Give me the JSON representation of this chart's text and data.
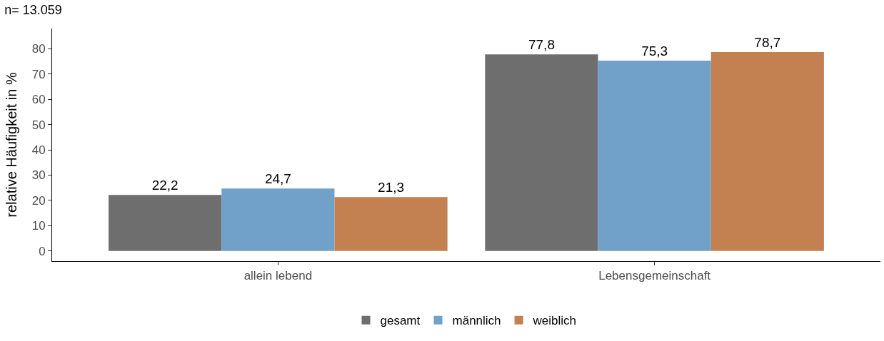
{
  "chart_data": {
    "type": "bar",
    "title": "n= 13.059",
    "ylabel": "relative Häufigkeit in %",
    "categories": [
      "allein lebend",
      "Lebensgemeinschaft"
    ],
    "series": [
      {
        "name": "gesamt",
        "color": "#6e6e6e",
        "values": [
          22.2,
          77.8
        ],
        "value_labels": [
          "22,2",
          "77,8"
        ]
      },
      {
        "name": "männlich",
        "color": "#71a0c8",
        "values": [
          24.7,
          75.3
        ],
        "value_labels": [
          "24,7",
          "75,3"
        ]
      },
      {
        "name": "weiblich",
        "color": "#c38050",
        "values": [
          21.3,
          78.7
        ],
        "value_labels": [
          "21,3",
          "78,7"
        ]
      }
    ],
    "ylim": [
      -4,
      88
    ],
    "yticks": [
      0,
      10,
      20,
      30,
      40,
      50,
      60,
      70,
      80
    ],
    "legend": "bottom"
  }
}
